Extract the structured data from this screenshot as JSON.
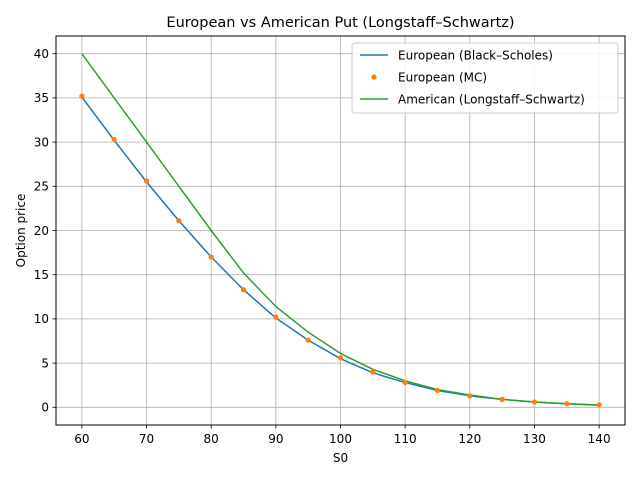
{
  "chart_data": {
    "type": "line",
    "title": "European vs American Put (Longstaff–Schwartz)",
    "xlabel": "S0",
    "ylabel": "Option price",
    "xlim": [
      56,
      144
    ],
    "ylim": [
      -2,
      42
    ],
    "xticks": [
      60,
      70,
      80,
      90,
      100,
      110,
      120,
      130,
      140
    ],
    "yticks": [
      0,
      5,
      10,
      15,
      20,
      25,
      30,
      35,
      40
    ],
    "grid": true,
    "legend_position": "top-right",
    "x": [
      60,
      65,
      70,
      75,
      80,
      85,
      90,
      95,
      100,
      105,
      110,
      115,
      120,
      125,
      130,
      135,
      140
    ],
    "series": [
      {
        "name": "European (Black–Scholes)",
        "style": "line",
        "color": "#1f77b4",
        "values": [
          35.1,
          30.2,
          25.5,
          21.1,
          17.0,
          13.3,
          10.1,
          7.6,
          5.5,
          3.9,
          2.8,
          1.9,
          1.3,
          0.9,
          0.6,
          0.4,
          0.25
        ]
      },
      {
        "name": "European (MC)",
        "style": "markers",
        "color": "#ff7f0e",
        "values": [
          35.2,
          30.3,
          25.6,
          21.1,
          17.0,
          13.3,
          10.2,
          7.6,
          5.6,
          4.0,
          2.8,
          1.9,
          1.3,
          0.9,
          0.6,
          0.4,
          0.3
        ]
      },
      {
        "name": "American (Longstaff–Schwartz)",
        "style": "line",
        "color": "#2ca02c",
        "values": [
          40.0,
          35.0,
          30.0,
          25.0,
          20.0,
          15.2,
          11.4,
          8.5,
          6.1,
          4.3,
          3.0,
          2.0,
          1.4,
          0.9,
          0.6,
          0.4,
          0.25
        ]
      }
    ]
  }
}
